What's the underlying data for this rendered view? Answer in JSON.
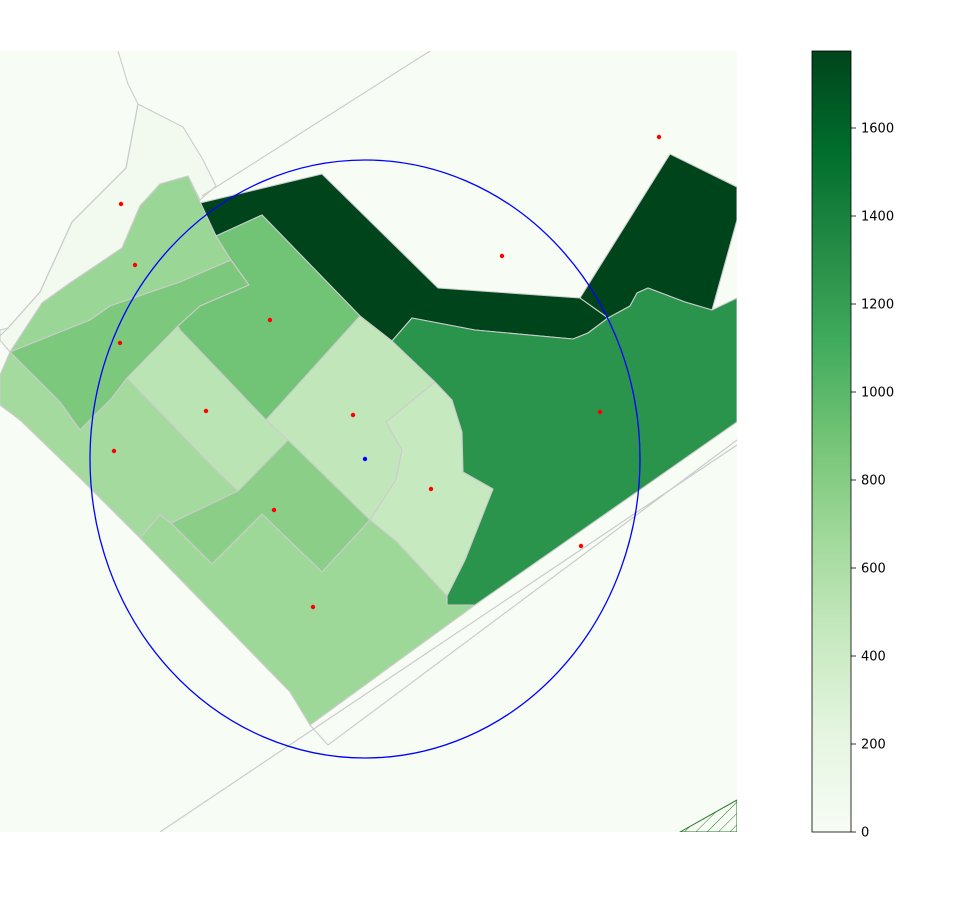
{
  "colorbar": {
    "min": 0,
    "max": 1775,
    "ticks": [
      "0",
      "200",
      "400",
      "600",
      "800",
      "1000",
      "1200",
      "1400",
      "1600"
    ],
    "colormap": "Greens",
    "stops": [
      "#f7fcf5",
      "#e5f5e0",
      "#c7e9c0",
      "#a1d99b",
      "#74c476",
      "#41ab5d",
      "#238b45",
      "#006d2c",
      "#00441b"
    ]
  },
  "map": {
    "background_color": "#f7fcf5",
    "boundary_color": "#cccccc",
    "search_circle_color": "#0000ff",
    "center_point_color": "#0000ff",
    "centroid_color": "#ff0000",
    "regions": [
      {
        "id": "r-nw-strip",
        "value": 60
      },
      {
        "id": "r-north-dark",
        "value": 1775
      },
      {
        "id": "r-northeast-dark",
        "value": 1775
      },
      {
        "id": "r-west-top",
        "value": 700
      },
      {
        "id": "r-west-band",
        "value": 850
      },
      {
        "id": "r-central-north",
        "value": 900
      },
      {
        "id": "r-central-light-a",
        "value": 520
      },
      {
        "id": "r-central-light-b",
        "value": 480
      },
      {
        "id": "r-east-light",
        "value": 450
      },
      {
        "id": "r-east-large",
        "value": 1270
      },
      {
        "id": "r-west-south",
        "value": 650
      },
      {
        "id": "r-central-south",
        "value": 780
      },
      {
        "id": "r-south",
        "value": 680
      }
    ]
  }
}
